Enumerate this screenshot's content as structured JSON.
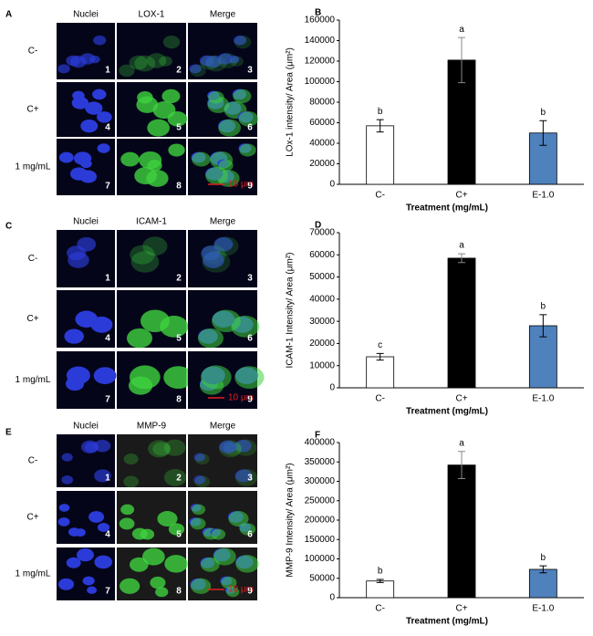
{
  "figure": {
    "panels": [
      {
        "letter": "A",
        "columns": [
          "Nuclei",
          "LOX-1",
          "Merge"
        ],
        "rows": [
          "C-",
          "C+",
          "1 mg/mL"
        ],
        "image_numbers": [
          "1",
          "2",
          "3",
          "4",
          "5",
          "6",
          "7",
          "8",
          "9"
        ],
        "scale_bar": "10 μm"
      },
      {
        "letter": "C",
        "columns": [
          "Nuclei",
          "ICAM-1",
          "Merge"
        ],
        "rows": [
          "C-",
          "C+",
          "1 mg/mL"
        ],
        "image_numbers": [
          "1",
          "2",
          "3",
          "4",
          "5",
          "6",
          "7",
          "8",
          "9"
        ],
        "scale_bar": "10 μm"
      },
      {
        "letter": "E",
        "columns": [
          "Nuclei",
          "MMP-9",
          "Merge"
        ],
        "rows": [
          "C-",
          "C+",
          "1 mg/mL"
        ],
        "image_numbers": [
          "1",
          "2",
          "3",
          "4",
          "5",
          "6",
          "7",
          "8",
          "9"
        ],
        "scale_bar": "10 μm"
      }
    ]
  },
  "chart_data": [
    {
      "type": "bar",
      "panel": "B",
      "ylabel": "LOx-1 intensity/ Area (μm²)",
      "xlabel": "Treatment (mg/mL)",
      "categories": [
        "C-",
        "C+",
        "E-1.0"
      ],
      "values": [
        57000,
        121000,
        50000
      ],
      "errors": [
        6000,
        22000,
        12000
      ],
      "letters": [
        "b",
        "a",
        "b"
      ],
      "colors": [
        "#ffffff",
        "#000000",
        "#4f81bd"
      ],
      "ylim": [
        0,
        160000
      ],
      "yticks": [
        0,
        20000,
        40000,
        60000,
        80000,
        100000,
        120000,
        140000,
        160000
      ]
    },
    {
      "type": "bar",
      "panel": "D",
      "ylabel": "ICAM-1 Intensity/ Area (μm²)",
      "xlabel": "Treatment (mg/mL)",
      "categories": [
        "C-",
        "C+",
        "E-1.0"
      ],
      "values": [
        14000,
        58500,
        28000
      ],
      "errors": [
        1500,
        2000,
        5000
      ],
      "letters": [
        "c",
        "a",
        "b"
      ],
      "colors": [
        "#ffffff",
        "#000000",
        "#4f81bd"
      ],
      "ylim": [
        0,
        70000
      ],
      "yticks": [
        0,
        10000,
        20000,
        30000,
        40000,
        50000,
        60000,
        70000
      ]
    },
    {
      "type": "bar",
      "panel": "F",
      "ylabel": "MMP-9 Intensity/ Area (μm²)",
      "xlabel": "Treatment (mg/mL)",
      "categories": [
        "C-",
        "C+",
        "E-1.0"
      ],
      "values": [
        43000,
        342000,
        73000
      ],
      "errors": [
        4000,
        35000,
        9000
      ],
      "letters": [
        "b",
        "a",
        "b"
      ],
      "colors": [
        "#ffffff",
        "#000000",
        "#4f81bd"
      ],
      "ylim": [
        0,
        400000
      ],
      "yticks": [
        0,
        50000,
        100000,
        150000,
        200000,
        250000,
        300000,
        350000,
        400000
      ]
    }
  ]
}
